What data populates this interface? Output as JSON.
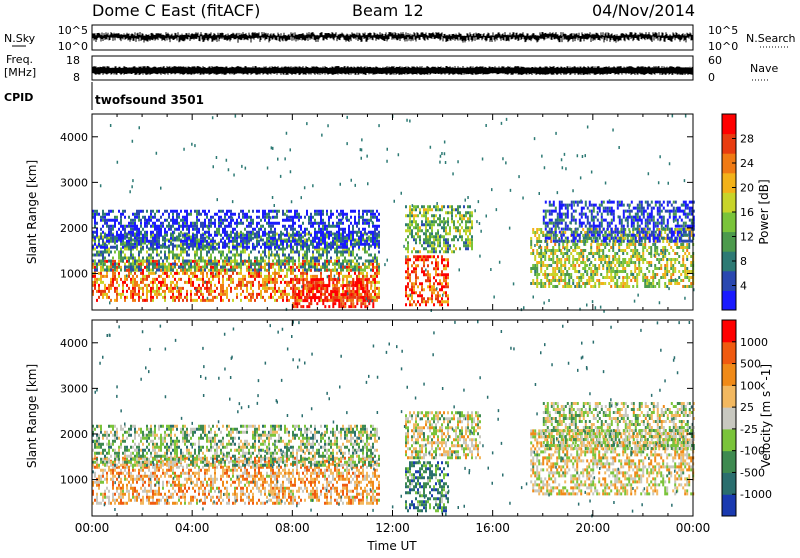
{
  "header": {
    "station": "Dome C East (fitACF)",
    "beam": "Beam 12",
    "date": "04/Nov/2014"
  },
  "params": {
    "nsky_label": "N.Sky",
    "nsky_ticks": [
      "10^5",
      "10^0"
    ],
    "nsearch_label": "N.Search",
    "nsearch_ticks": [
      "10^5",
      "10^0"
    ],
    "freq_label": "Freq.",
    "freq_unit": "[MHz]",
    "freq_ticks": [
      "18",
      "8"
    ],
    "nave_label": "Nave",
    "nave_ticks": [
      "60",
      "0"
    ],
    "cpid_label": "CPID",
    "cpid_value": "twofsound 3501"
  },
  "chart_data": [
    {
      "type": "heatmap",
      "name": "power",
      "ylabel": "Slant Range [km]",
      "yticks": [
        1000,
        2000,
        3000,
        4000
      ],
      "ylim": [
        200,
        4500
      ],
      "xlim_hours": [
        0,
        24
      ],
      "colorbar_label": "Power [dB]",
      "colorbar_ticks": [
        "28",
        "24",
        "20",
        "16",
        "12",
        "8",
        "4"
      ],
      "colorbar_colors": [
        "#1a1aff",
        "#2a48b0",
        "#2d7a74",
        "#4c9a4c",
        "#7ac43a",
        "#c8d42a",
        "#f2b21a",
        "#f07a14",
        "#e83c10",
        "#ff0000"
      ],
      "echo_bands": [
        {
          "x0": 0,
          "x1": 11.5,
          "r0": 400,
          "r1": 1300,
          "level": 0.75
        },
        {
          "x0": 8,
          "x1": 11.2,
          "r0": 300,
          "r1": 900,
          "level": 0.97
        },
        {
          "x0": 0,
          "x1": 11.5,
          "r0": 1100,
          "r1": 1900,
          "level": 0.35
        },
        {
          "x0": 12.5,
          "x1": 14.2,
          "r0": 300,
          "r1": 1400,
          "level": 0.85
        },
        {
          "x0": 12.5,
          "x1": 15.2,
          "r0": 1500,
          "r1": 2500,
          "level": 0.4
        },
        {
          "x0": 17.5,
          "x1": 24,
          "r0": 700,
          "r1": 2000,
          "level": 0.5
        },
        {
          "x0": 18,
          "x1": 24,
          "r0": 1700,
          "r1": 2600,
          "level": 0.12
        },
        {
          "x0": 0,
          "x1": 11.5,
          "r0": 1600,
          "r1": 2400,
          "level": 0.1
        }
      ]
    },
    {
      "type": "heatmap",
      "name": "velocity",
      "ylabel": "Slant Range [km]",
      "yticks": [
        1000,
        2000,
        3000,
        4000
      ],
      "ylim": [
        200,
        4500
      ],
      "xlim_hours": [
        0,
        24
      ],
      "xticks": [
        "00:00",
        "04:00",
        "08:00",
        "12:00",
        "16:00",
        "20:00",
        "00:00"
      ],
      "xlabel": "Time UT",
      "colorbar_label": "Velocity [m s^-1]",
      "colorbar_ticks": [
        "1000",
        "500",
        "100",
        "25",
        "-25",
        "-100",
        "-500",
        "-1000"
      ],
      "colorbar_colors": [
        "#1a3ab0",
        "#2a6e6e",
        "#3e8a50",
        "#7ac43a",
        "#c8c8c0",
        "#f2b860",
        "#f08a18",
        "#f05a10",
        "#ff0000"
      ],
      "echo_bands": [
        {
          "x0": 0,
          "x1": 11.5,
          "r0": 500,
          "r1": 1500,
          "level": 0.65
        },
        {
          "x0": 0,
          "x1": 11.5,
          "r0": 1300,
          "r1": 2200,
          "level": 0.4
        },
        {
          "x0": 12.5,
          "x1": 14.2,
          "r0": 300,
          "r1": 1400,
          "level": 0.25
        },
        {
          "x0": 12.5,
          "x1": 15.5,
          "r0": 1500,
          "r1": 2500,
          "level": 0.5
        },
        {
          "x0": 17.5,
          "x1": 24,
          "r0": 700,
          "r1": 2100,
          "level": 0.55
        },
        {
          "x0": 18,
          "x1": 24,
          "r0": 1700,
          "r1": 2700,
          "level": 0.45
        }
      ]
    }
  ]
}
